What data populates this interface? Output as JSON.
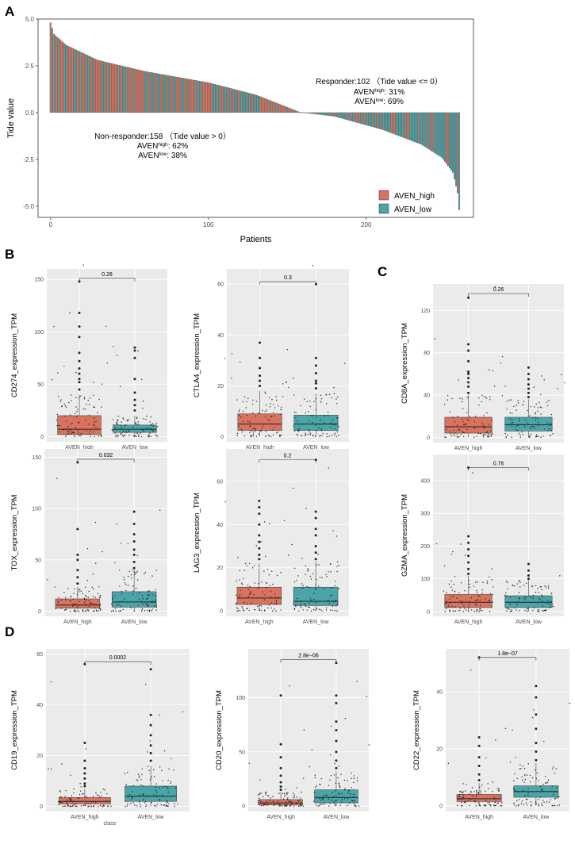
{
  "panels": {
    "A": "A",
    "B": "B",
    "C": "C",
    "D": "D"
  },
  "chart_data": [
    {
      "id": "A",
      "type": "bar",
      "xlabel": "Patients",
      "ylabel": "Tide value",
      "xlim": [
        -8,
        268
      ],
      "ylim": [
        -5.6,
        5.0
      ],
      "xticks": [
        0,
        100,
        200
      ],
      "yticks": [
        -5.0,
        -2.5,
        0.0,
        2.5,
        5.0
      ],
      "ytick_labels": [
        "-5.0",
        "-2.5",
        "0.0",
        "2.5",
        "5.0"
      ],
      "n_patients": 260,
      "series": [
        {
          "name": "AVEN_high",
          "color": "#d9735f"
        },
        {
          "name": "AVEN_low",
          "color": "#4aa5a8"
        }
      ],
      "tide_profile": [
        {
          "patient": 0,
          "value": 4.8
        },
        {
          "patient": 2,
          "value": 4.2
        },
        {
          "patient": 10,
          "value": 3.6
        },
        {
          "patient": 30,
          "value": 2.8
        },
        {
          "patient": 60,
          "value": 2.2
        },
        {
          "patient": 100,
          "value": 1.6
        },
        {
          "patient": 130,
          "value": 0.95
        },
        {
          "patient": 158,
          "value": 0.02
        },
        {
          "patient": 180,
          "value": -0.2
        },
        {
          "patient": 210,
          "value": -0.9
        },
        {
          "patient": 235,
          "value": -1.7
        },
        {
          "patient": 248,
          "value": -2.4
        },
        {
          "patient": 255,
          "value": -3.2
        },
        {
          "patient": 258,
          "value": -4.3
        },
        {
          "patient": 259,
          "value": -5.2
        }
      ],
      "annotations": {
        "responder": {
          "line1": "Responder:102 （Tide value <= 0）",
          "high": "31%",
          "low": "69%"
        },
        "nonresponder": {
          "line1": "Non-responder:158 （Tide value > 0）",
          "high": "62%",
          "low": "38%"
        },
        "aven": "AVEN",
        "sup_high": "high",
        "sup_low": "low"
      },
      "legend": [
        "AVEN_high",
        "AVEN_low"
      ],
      "legend_position": "bottom-right"
    },
    {
      "id": "CD274",
      "type": "box",
      "ylabel": "CD274_expression_TPM",
      "categories": [
        "AVEN_high",
        "AVEN_low"
      ],
      "ylim": [
        -5,
        160
      ],
      "yticks": [
        0,
        50,
        100,
        150
      ],
      "pvalue": "0.28",
      "bracket_y": 151,
      "boxes": [
        {
          "q1": 2,
          "median": 7,
          "q3": 20,
          "whisk_lo": 0,
          "whisk_hi": 40
        },
        {
          "q1": 4,
          "median": 7,
          "q3": 11,
          "whisk_lo": 0,
          "whisk_hi": 20
        }
      ],
      "outliers": [
        [
          45,
          52,
          55,
          60,
          65,
          72,
          80,
          95,
          105,
          118,
          148
        ],
        [
          25,
          30,
          35,
          42,
          55,
          75,
          82,
          85
        ]
      ]
    },
    {
      "id": "CTLA4",
      "type": "box",
      "ylabel": "CTLA4_expression_TPM",
      "categories": [
        "AVEN_high",
        "AVEN_low"
      ],
      "ylim": [
        -2,
        66
      ],
      "yticks": [
        0,
        20,
        40,
        60
      ],
      "pvalue": "0.3",
      "bracket_y": 61,
      "boxes": [
        {
          "q1": 2.5,
          "median": 5,
          "q3": 9,
          "whisk_lo": 0,
          "whisk_hi": 18
        },
        {
          "q1": 2.5,
          "median": 5,
          "q3": 8.5,
          "whisk_lo": 0,
          "whisk_hi": 17
        }
      ],
      "outliers": [
        [
          20,
          22,
          24,
          27,
          31,
          37
        ],
        [
          19,
          21,
          22,
          25,
          28,
          31,
          60
        ]
      ]
    },
    {
      "id": "CD8A",
      "type": "box",
      "ylabel": "CD8A_expression_TPM",
      "categories": [
        "AVEN_high",
        "AVEN_low"
      ],
      "ylim": [
        -5,
        145
      ],
      "yticks": [
        0,
        40,
        80,
        120
      ],
      "ytick_labels": [
        "0",
        "40",
        "80",
        "120"
      ],
      "pvalue": "0.26",
      "bracket_y": 136,
      "boxes": [
        {
          "q1": 4,
          "median": 10,
          "q3": 19,
          "whisk_lo": 0,
          "whisk_hi": 40
        },
        {
          "q1": 6,
          "median": 12,
          "q3": 19,
          "whisk_lo": 0,
          "whisk_hi": 36
        }
      ],
      "outliers": [
        [
          42,
          48,
          52,
          56,
          60,
          62,
          72,
          82,
          88,
          132
        ],
        [
          38,
          42,
          46,
          50,
          55,
          60,
          66
        ]
      ]
    },
    {
      "id": "TOX",
      "type": "box",
      "ylabel": "TOX_expression_TPM",
      "categories": [
        "AVEN_high",
        "AVEN_low"
      ],
      "ylim": [
        -5,
        158
      ],
      "yticks": [
        0,
        50,
        100,
        150
      ],
      "pvalue": "0.032",
      "bracket_y": 148,
      "boxes": [
        {
          "q1": 3,
          "median": 6,
          "q3": 12,
          "whisk_lo": 0,
          "whisk_hi": 24
        },
        {
          "q1": 4,
          "median": 9,
          "q3": 19,
          "whisk_lo": 0,
          "whisk_hi": 40
        }
      ],
      "outliers": [
        [
          27,
          33,
          40,
          50,
          55,
          80,
          145
        ],
        [
          42,
          48,
          55,
          60,
          68,
          75,
          85,
          97
        ]
      ]
    },
    {
      "id": "LAG3",
      "type": "box",
      "ylabel": "LAG3_expression_TPM",
      "categories": [
        "AVEN_high",
        "AVEN_low"
      ],
      "ylim": [
        -2.5,
        75
      ],
      "yticks": [
        0,
        20,
        40,
        60
      ],
      "pvalue": "0.2",
      "bracket_y": 70,
      "boxes": [
        {
          "q1": 3,
          "median": 6,
          "q3": 11,
          "whisk_lo": 0,
          "whisk_hi": 22
        },
        {
          "q1": 2.5,
          "median": 4.5,
          "q3": 11,
          "whisk_lo": 0,
          "whisk_hi": 23
        }
      ],
      "outliers": [
        [
          24,
          26,
          29,
          32,
          35,
          40,
          45,
          48,
          51
        ],
        [
          24,
          27,
          30,
          35,
          38,
          43,
          46,
          70
        ]
      ]
    },
    {
      "id": "GZMA",
      "type": "box",
      "ylabel": "GZMA_expression_TPM",
      "categories": [
        "AVEN_high",
        "AVEN_low"
      ],
      "ylim": [
        -15,
        480
      ],
      "yticks": [
        0,
        100,
        200,
        300,
        400
      ],
      "ytick_labels": [
        "0",
        "100",
        "200",
        "300",
        "400"
      ],
      "pvalue": "0.76",
      "bracket_y": 440,
      "boxes": [
        {
          "q1": 12,
          "median": 28,
          "q3": 52,
          "whisk_lo": 0,
          "whisk_hi": 110
        },
        {
          "q1": 12,
          "median": 28,
          "q3": 48,
          "whisk_lo": 0,
          "whisk_hi": 95
        }
      ],
      "outliers": [
        [
          115,
          130,
          150,
          170,
          190,
          210,
          230,
          440
        ],
        [
          100,
          110,
          125,
          145
        ]
      ]
    },
    {
      "id": "CD19",
      "type": "box",
      "ylabel": "CD19_expression_TPM",
      "xlabel": "class",
      "categories": [
        "AVEN_high",
        "AVEN_low"
      ],
      "ylim": [
        -2,
        62
      ],
      "yticks": [
        0,
        20,
        40,
        60
      ],
      "pvalue": "0.0002",
      "bracket_y": 57,
      "boxes": [
        {
          "q1": 1,
          "median": 2,
          "q3": 3.5,
          "whisk_lo": 0,
          "whisk_hi": 7
        },
        {
          "q1": 2,
          "median": 4,
          "q3": 8,
          "whisk_lo": 0,
          "whisk_hi": 16
        }
      ],
      "outliers": [
        [
          8,
          9,
          11,
          13,
          15,
          18,
          25,
          56
        ],
        [
          18,
          21,
          24,
          28,
          32,
          36,
          54
        ]
      ]
    },
    {
      "id": "CD20",
      "type": "box",
      "ylabel": "CD20_expression_TPM",
      "categories": [
        "AVEN_high",
        "AVEN_low"
      ],
      "ylim": [
        -5,
        145
      ],
      "yticks": [
        0,
        50,
        100
      ],
      "pvalue": "2.8e−06",
      "bracket_y": 135,
      "boxes": [
        {
          "q1": 1,
          "median": 3,
          "q3": 6,
          "whisk_lo": 0,
          "whisk_hi": 13
        },
        {
          "q1": 3,
          "median": 8,
          "q3": 15,
          "whisk_lo": 0,
          "whisk_hi": 32
        }
      ],
      "outliers": [
        [
          15,
          18,
          22,
          28,
          35,
          45,
          57,
          102
        ],
        [
          35,
          42,
          50,
          60,
          70,
          78,
          95,
          102,
          132
        ]
      ]
    },
    {
      "id": "CD22",
      "type": "box",
      "ylabel": "CD22_expression_TPM",
      "categories": [
        "AVEN_high",
        "AVEN_low"
      ],
      "ylim": [
        -2,
        55
      ],
      "yticks": [
        0,
        20,
        40
      ],
      "pvalue": "1.8e−07",
      "bracket_y": 52,
      "boxes": [
        {
          "q1": 1.5,
          "median": 2.5,
          "q3": 4,
          "whisk_lo": 0,
          "whisk_hi": 8
        },
        {
          "q1": 3,
          "median": 5,
          "q3": 7,
          "whisk_lo": 0,
          "whisk_hi": 15
        }
      ],
      "outliers": [
        [
          9,
          11,
          14,
          17,
          21,
          24,
          52
        ],
        [
          16,
          19,
          22,
          27,
          32,
          38,
          42
        ]
      ]
    }
  ]
}
